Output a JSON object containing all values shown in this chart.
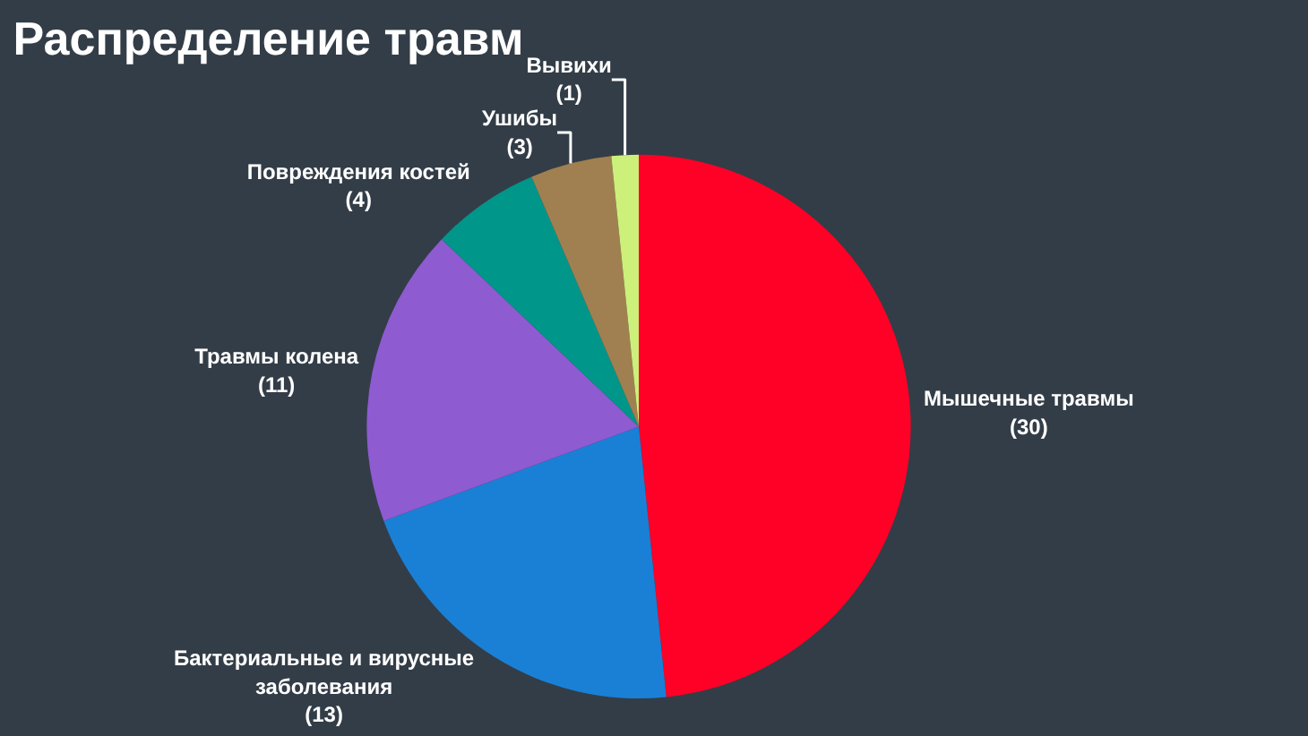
{
  "chart_data": {
    "type": "pie",
    "title": "Распределение травм",
    "categories": [
      "Мышечные травмы",
      "Бактериальные и вирусные заболевания",
      "Травмы колена",
      "Повреждения костей",
      "Ушибы",
      "Вывихи"
    ],
    "values": [
      30,
      13,
      11,
      4,
      3,
      1
    ],
    "colors": [
      "#ff0027",
      "#1a80d6",
      "#8e5bd1",
      "#00968a",
      "#a08050",
      "#ccf07a"
    ],
    "value_labels": [
      "(30)",
      "(13)",
      "(11)",
      "(4)",
      "(3)",
      "(1)"
    ],
    "legend": false
  }
}
